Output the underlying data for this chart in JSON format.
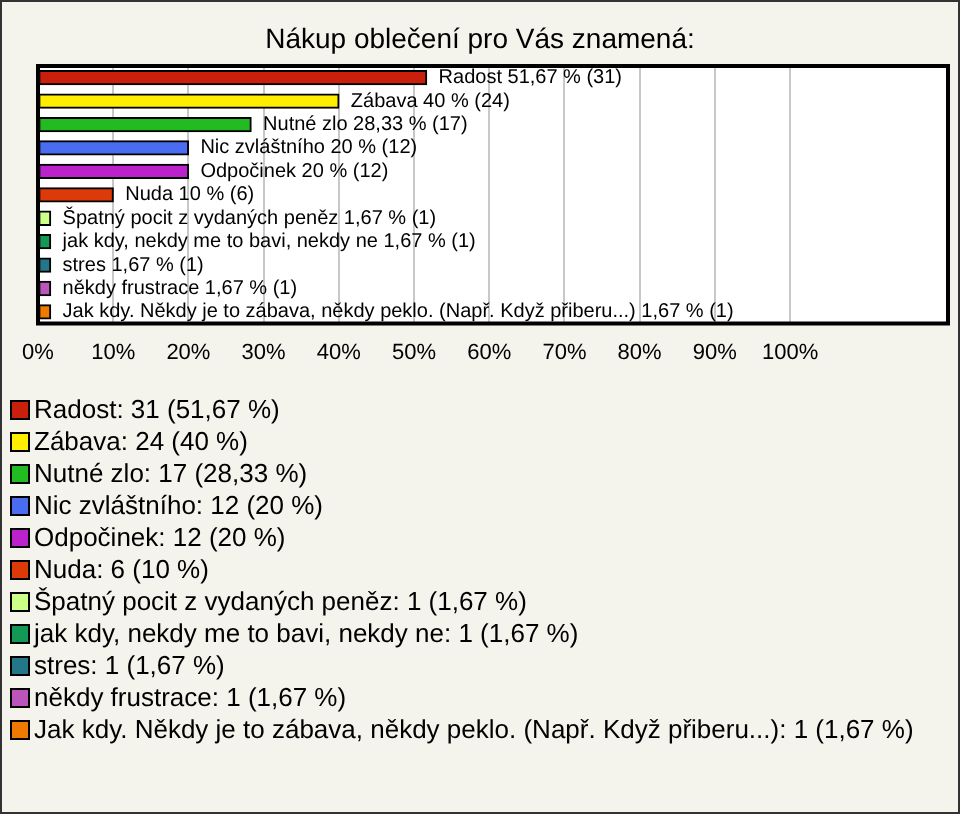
{
  "chart_data": {
    "type": "bar",
    "title": "Nákup oblečení pro Vás znamená:",
    "orientation": "horizontal",
    "categories": [
      null,
      null,
      null,
      null,
      null,
      null,
      null,
      null,
      null,
      null,
      null
    ],
    "values": [
      51.67,
      40,
      28.33,
      20,
      20,
      10,
      1.67,
      1.67,
      1.67,
      1.67,
      1.67
    ],
    "colors": [
      "#c8200c",
      "#ffee00",
      "#22bb22",
      "#4a6cf0",
      "#bb22cc",
      "#dd3a0a",
      "#ccff88",
      "#119955",
      "#227788",
      "#bb55bb",
      "#ee7a00"
    ],
    "value_labels": [
      "Radost 51,67 % (31)",
      "Zábava 40 % (24)",
      "Nutné zlo 28,33 % (17)",
      "Nic zvláštního 20 % (12)",
      "Odpočinek 20 % (12)",
      "Nuda 10 % (6)",
      "Špatný pocit z vydaných peněz 1,67 % (1)",
      "jak kdy, nekdy me to bavi, nekdy ne 1,67 % (1)",
      "stres 1,67 % (1)",
      "někdy frustrace 1,67 % (1)",
      "Jak kdy. Někdy je to zábava, někdy peklo. (Např. Když přiberu...) 1,67 % (1)"
    ],
    "annotations": [
      "Radost: 31 (51,67 %)",
      "Zábava: 24 (40 %)",
      "Nutné zlo: 17 (28,33 %)",
      "Nic zvláštního: 12 (20 %)",
      "Odpočinek: 12 (20 %)",
      "Nuda: 6 (10 %)",
      "Špatný pocit z vydaných peněz: 1 (1,67 %)",
      "jak kdy, nekdy me to bavi, nekdy ne: 1 (1,67 %)",
      "stres: 1 (1,67 %)",
      "někdy frustrace: 1 (1,67 %)",
      "Jak kdy. Někdy je to zábava, někdy peklo. (Např. Když přiberu...): 1 (1,67 %)"
    ],
    "xlim": [
      0,
      121
    ],
    "xticks": [
      {
        "value": 0,
        "label": "0%"
      },
      {
        "value": 10,
        "label": "10%"
      },
      {
        "value": 20,
        "label": "20%"
      },
      {
        "value": 30,
        "label": "30%"
      },
      {
        "value": 40,
        "label": "40%"
      },
      {
        "value": 50,
        "label": "50%"
      },
      {
        "value": 60,
        "label": "60%"
      },
      {
        "value": 70,
        "label": "70%"
      },
      {
        "value": 80,
        "label": "80%"
      },
      {
        "value": 90,
        "label": "90%"
      },
      {
        "value": 100,
        "label": "100%"
      }
    ],
    "grid": "x",
    "tick_labels": "x"
  }
}
